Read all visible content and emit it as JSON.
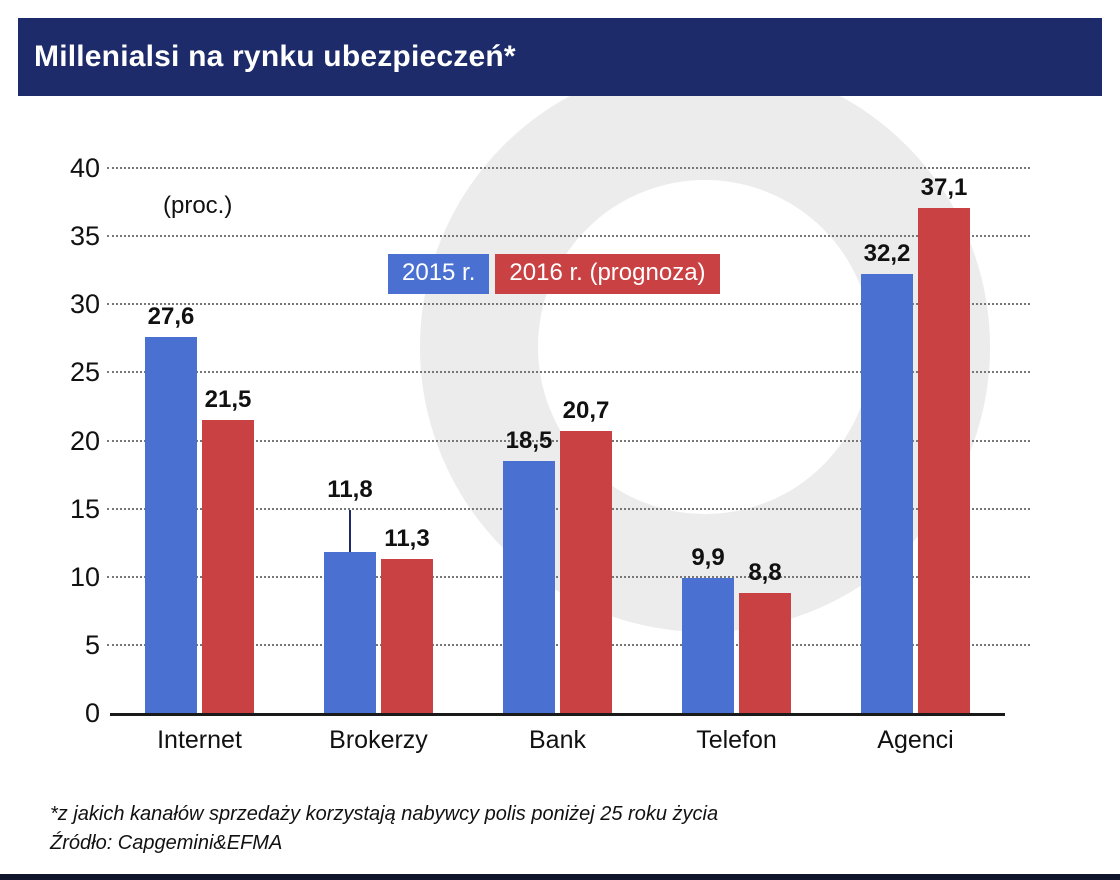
{
  "header": {
    "title": "Millenialsi na rynku ubezpieczeń*"
  },
  "chart_data": {
    "type": "bar",
    "title": "Millenialsi na rynku ubezpieczeń*",
    "unit_label": "(proc.)",
    "categories": [
      "Internet",
      "Brokerzy",
      "Bank",
      "Telefon",
      "Agenci"
    ],
    "series": [
      {
        "name": "2015 r.",
        "color": "#4a70d2",
        "values": [
          27.6,
          11.8,
          18.5,
          9.9,
          32.2
        ],
        "labels": [
          "27,6",
          "11,8",
          "18,5",
          "9,9",
          "32,2"
        ]
      },
      {
        "name": "2016 r. (prognoza)",
        "color": "#c94142",
        "values": [
          21.5,
          11.3,
          20.7,
          8.8,
          37.1
        ],
        "labels": [
          "21,5",
          "11,3",
          "20,7",
          "8,8",
          "37,1"
        ]
      }
    ],
    "ylim": [
      0,
      40
    ],
    "yticks": [
      0,
      5,
      10,
      15,
      20,
      25,
      30,
      35,
      40
    ],
    "grid": "dotted-horizontal",
    "legend_position": "top-center-inside",
    "raised_label": {
      "series": 0,
      "index": 1
    },
    "accent_navy": "#1d2b6b"
  },
  "footer": {
    "note": "*z jakich kanałów sprzedaży korzystają nabywcy polis poniżej 25 roku życia",
    "source": "Źródło: Capgemini&EFMA"
  }
}
